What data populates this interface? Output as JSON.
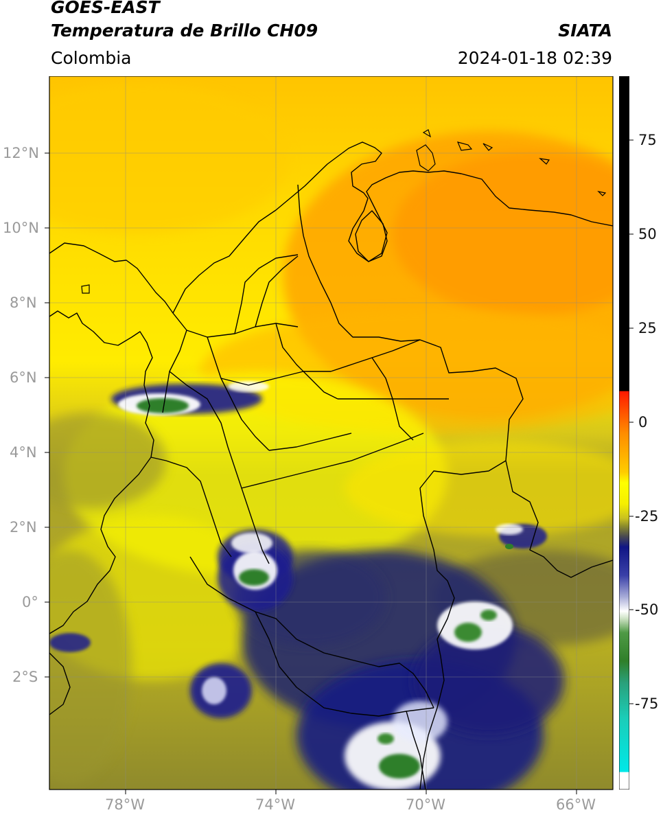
{
  "header": {
    "satellite": "GOES-EAST",
    "product": "Temperatura de Brillo CH09",
    "brand": "SIATA",
    "region": "Colombia",
    "datetime": "2024-01-18 02:39"
  },
  "map": {
    "lat_ticks": [
      "12°N",
      "10°N",
      "8°N",
      "6°N",
      "4°N",
      "2°N",
      "0°",
      "2°S"
    ],
    "lon_ticks": [
      "78°W",
      "74°W",
      "70°W",
      "66°W"
    ],
    "lon_range": [
      -80,
      -65
    ],
    "lat_range": [
      -5,
      14
    ]
  },
  "colorbar": {
    "ticks": [
      "75",
      "50",
      "25",
      "0",
      "-25",
      "-50",
      "-75"
    ],
    "colors": {
      "black": "#000000",
      "red": "#ff1a00",
      "orange": "#ff8c00",
      "yellow": "#ffff00",
      "olive": "#8f8f2b",
      "navy": "#101585",
      "white": "#ffffff",
      "green": "#2f7f2a",
      "cyan": "#00e8e8"
    }
  }
}
